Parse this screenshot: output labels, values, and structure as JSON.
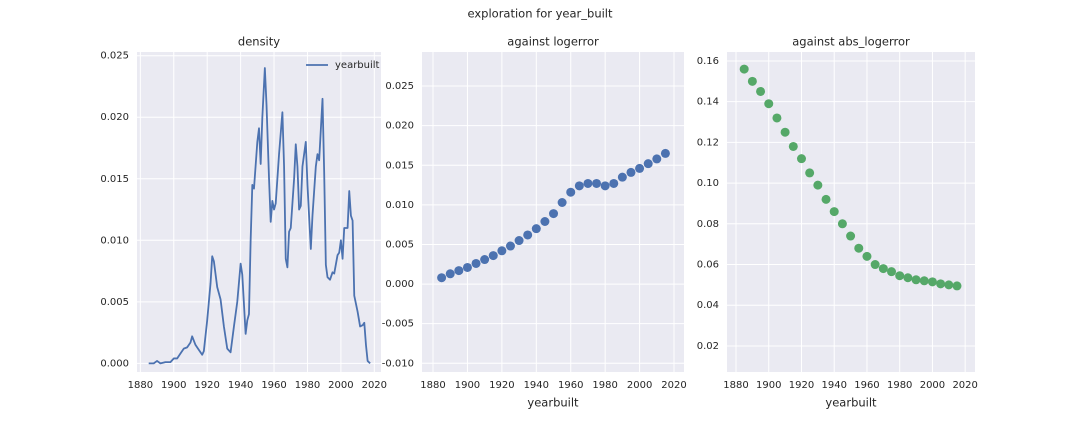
{
  "title": "exploration for year_built",
  "chart_data": [
    {
      "type": "line",
      "title": "density",
      "x": [
        1885,
        1888,
        1890,
        1892,
        1895,
        1898,
        1900,
        1902,
        1904,
        1906,
        1908,
        1910,
        1911,
        1913,
        1915,
        1917,
        1918,
        1920,
        1922,
        1923,
        1924,
        1926,
        1928,
        1930,
        1932,
        1934,
        1936,
        1938,
        1940,
        1941,
        1943,
        1944,
        1945,
        1946,
        1947,
        1948,
        1950,
        1951,
        1952,
        1953,
        1954.5,
        1955.5,
        1957,
        1958,
        1959,
        1960,
        1961,
        1963,
        1965,
        1966,
        1967,
        1968,
        1969,
        1970,
        1971,
        1972,
        1973,
        1974,
        1975,
        1976,
        1977,
        1979,
        1980,
        1982,
        1983,
        1985,
        1986,
        1987,
        1989,
        1990,
        1991,
        1992,
        1993.5,
        1995,
        1996,
        1998,
        1999,
        2000,
        2001,
        2002,
        2004,
        2005,
        2006,
        2007,
        2008,
        2010,
        2011.5,
        2013,
        2014,
        2015,
        2016,
        2017.5
      ],
      "series": [
        {
          "name": "yearbuilt",
          "color": "#4c72b0",
          "values": [
            0,
            0,
            0.0002,
            0,
            0.0001,
            0.0001,
            0.0004,
            0.0004,
            0.0008,
            0.0012,
            0.0013,
            0.0017,
            0.0022,
            0.0015,
            0.0011,
            0.0007,
            0.001,
            0.0035,
            0.0065,
            0.0087,
            0.0083,
            0.0062,
            0.0052,
            0.003,
            0.0012,
            0.0009,
            0.003,
            0.005,
            0.0081,
            0.0072,
            0.0024,
            0.0035,
            0.004,
            0.01,
            0.0145,
            0.0142,
            0.018,
            0.0191,
            0.0162,
            0.02,
            0.024,
            0.021,
            0.015,
            0.0115,
            0.0132,
            0.0125,
            0.013,
            0.017,
            0.0204,
            0.016,
            0.0085,
            0.0078,
            0.0107,
            0.011,
            0.013,
            0.015,
            0.0178,
            0.016,
            0.0125,
            0.0128,
            0.016,
            0.018,
            0.0145,
            0.0093,
            0.012,
            0.016,
            0.017,
            0.0165,
            0.0215,
            0.0155,
            0.008,
            0.007,
            0.0068,
            0.0074,
            0.0073,
            0.0088,
            0.009,
            0.01,
            0.0085,
            0.011,
            0.011,
            0.014,
            0.012,
            0.0116,
            0.0055,
            0.0042,
            0.003,
            0.0031,
            0.0033,
            0.0015,
            0.0002,
            0
          ]
        }
      ],
      "legend": "upper right",
      "xlim": [
        1878,
        2024
      ],
      "xticks": [
        1880,
        1900,
        1920,
        1940,
        1960,
        1980,
        2000,
        2020
      ],
      "ylim": [
        -0.0007,
        0.0253
      ],
      "yticks": [
        {
          "value": 0,
          "label": "0.000"
        },
        {
          "value": 0.005,
          "label": "0.005"
        },
        {
          "value": 0.01,
          "label": "0.010"
        },
        {
          "value": 0.015,
          "label": "0.015"
        },
        {
          "value": 0.02,
          "label": "0.020"
        },
        {
          "value": 0.025,
          "label": "0.025"
        }
      ],
      "grid": true
    },
    {
      "type": "scatter",
      "title": "against logerror",
      "x_label": "yearbuilt",
      "x": [
        1885,
        1890,
        1895,
        1900,
        1905,
        1910,
        1915,
        1920,
        1925,
        1930,
        1935,
        1940,
        1945,
        1950,
        1955,
        1960,
        1965,
        1970,
        1975,
        1980,
        1985,
        1990,
        1995,
        2000,
        2005,
        2010,
        2015
      ],
      "series": [
        {
          "color": "#4c72b0",
          "values": [
            0.0008,
            0.0013,
            0.0017,
            0.0021,
            0.0026,
            0.0031,
            0.0036,
            0.0042,
            0.0048,
            0.0055,
            0.0062,
            0.007,
            0.0079,
            0.0089,
            0.0103,
            0.0116,
            0.0124,
            0.0127,
            0.0127,
            0.0124,
            0.0127,
            0.0135,
            0.0141,
            0.0146,
            0.0152,
            0.0158,
            0.0165
          ]
        }
      ],
      "xlim": [
        1873.6,
        2025.8
      ],
      "xticks": [
        1880,
        1900,
        1920,
        1940,
        1960,
        1980,
        2000,
        2020
      ],
      "ylim": [
        -0.0111,
        0.0293
      ],
      "yticks": [
        {
          "value": -0.01,
          "label": "-0.010"
        },
        {
          "value": -0.005,
          "label": "-0.005"
        },
        {
          "value": 0,
          "label": "0.000"
        },
        {
          "value": 0.005,
          "label": "0.005"
        },
        {
          "value": 0.01,
          "label": "0.010"
        },
        {
          "value": 0.015,
          "label": "0.015"
        },
        {
          "value": 0.02,
          "label": "0.020"
        },
        {
          "value": 0.025,
          "label": "0.025"
        }
      ],
      "grid": true
    },
    {
      "type": "scatter",
      "title": "against abs_logerror",
      "x_label": "yearbuilt",
      "x": [
        1885,
        1890,
        1895,
        1900,
        1905,
        1910,
        1915,
        1920,
        1925,
        1930,
        1935,
        1940,
        1945,
        1950,
        1955,
        1960,
        1965,
        1970,
        1975,
        1980,
        1985,
        1990,
        1995,
        2000,
        2005,
        2010,
        2015
      ],
      "series": [
        {
          "color": "#55a868",
          "values": [
            0.156,
            0.15,
            0.145,
            0.139,
            0.132,
            0.125,
            0.118,
            0.112,
            0.105,
            0.099,
            0.092,
            0.086,
            0.08,
            0.074,
            0.068,
            0.064,
            0.06,
            0.058,
            0.0565,
            0.0545,
            0.0535,
            0.0525,
            0.052,
            0.0515,
            0.0505,
            0.05,
            0.0495
          ]
        }
      ],
      "xlim": [
        1874.5,
        2026
      ],
      "xticks": [
        1880,
        1900,
        1920,
        1940,
        1960,
        1980,
        2000,
        2020
      ],
      "ylim": [
        0.0072,
        0.1644
      ],
      "yticks": [
        {
          "value": 0.02,
          "label": "0.02"
        },
        {
          "value": 0.04,
          "label": "0.04"
        },
        {
          "value": 0.06,
          "label": "0.06"
        },
        {
          "value": 0.08,
          "label": "0.08"
        },
        {
          "value": 0.1,
          "label": "0.10"
        },
        {
          "value": 0.12,
          "label": "0.12"
        },
        {
          "value": 0.14,
          "label": "0.14"
        },
        {
          "value": 0.16,
          "label": "0.16"
        }
      ],
      "grid": true
    }
  ]
}
